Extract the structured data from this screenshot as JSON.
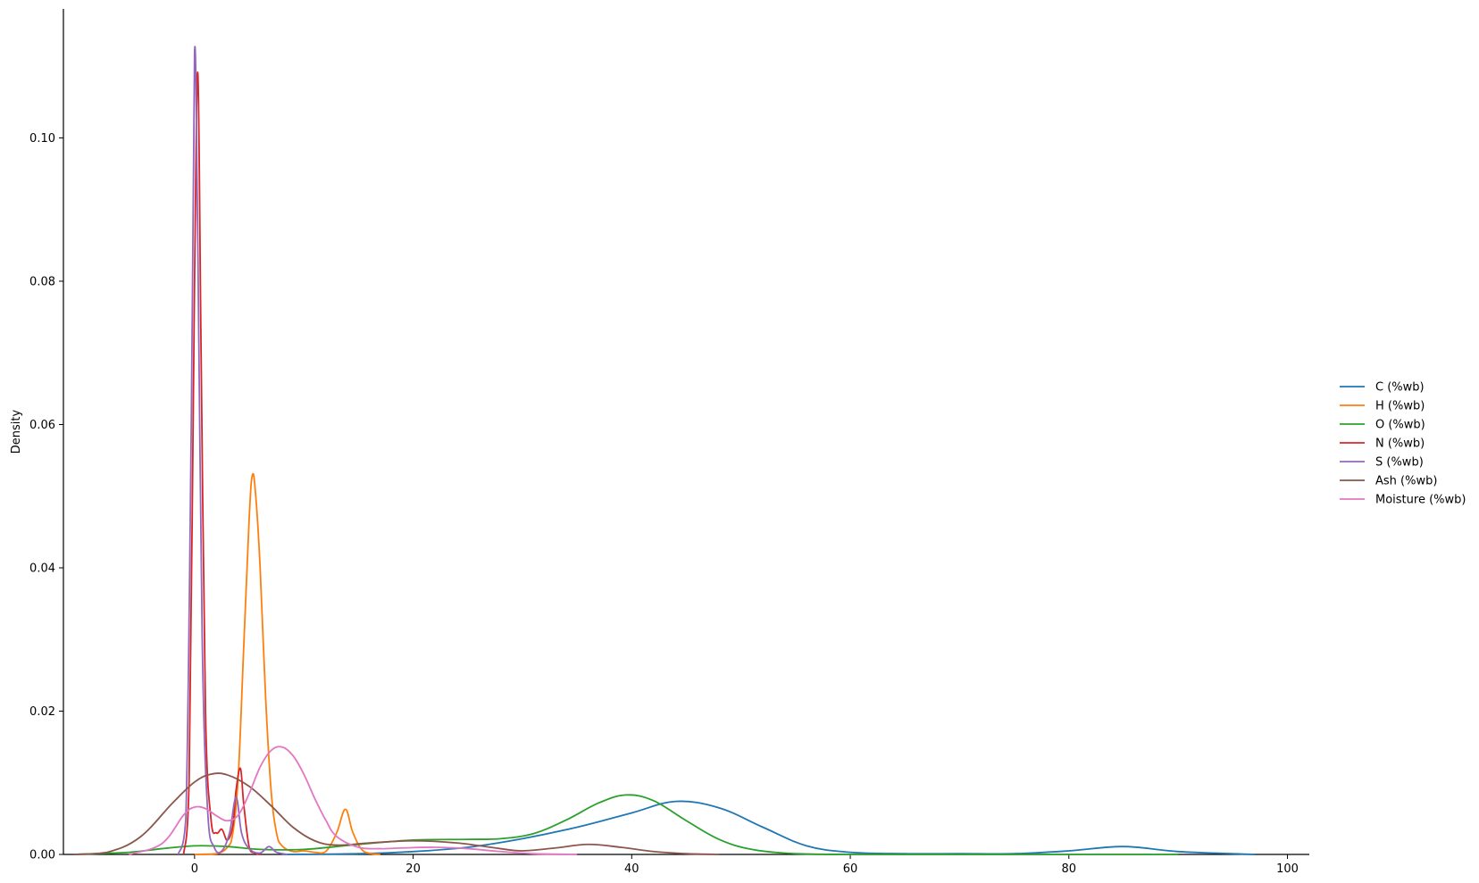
{
  "chart_data": {
    "type": "line",
    "title": "",
    "xlabel": "",
    "ylabel": "Density",
    "xlim": [
      -12,
      102
    ],
    "ylim": [
      0,
      0.118
    ],
    "x_ticks": [
      0,
      20,
      40,
      60,
      80,
      100
    ],
    "y_ticks": [
      0.0,
      0.02,
      0.04,
      0.06,
      0.08,
      0.1
    ],
    "y_tick_labels": [
      "0.00",
      "0.02",
      "0.04",
      "0.06",
      "0.08",
      "0.10"
    ],
    "grid": false,
    "legend": "right",
    "series": [
      {
        "name": "C (%wb)",
        "color": "#1f77b4",
        "x": [
          8,
          15,
          20,
          25,
          30,
          35,
          40,
          44,
          48,
          52,
          56,
          60,
          65,
          70,
          75,
          80,
          85,
          90,
          97
        ],
        "y": [
          0,
          0.0001,
          0.0004,
          0.001,
          0.0022,
          0.0038,
          0.0058,
          0.0074,
          0.0065,
          0.0038,
          0.0012,
          0.0003,
          0.0001,
          0.0001,
          0.0001,
          0.0005,
          0.0011,
          0.0004,
          0
        ]
      },
      {
        "name": "H (%wb)",
        "color": "#ff7f0e",
        "x": [
          0,
          2,
          3,
          3.5,
          4,
          4.5,
          5,
          5.3,
          5.6,
          6,
          6.5,
          7,
          7.5,
          8,
          9,
          10,
          11,
          12,
          13,
          13.8,
          14.5,
          15.5,
          17
        ],
        "y": [
          0,
          0.0001,
          0.001,
          0.003,
          0.011,
          0.029,
          0.047,
          0.053,
          0.05,
          0.04,
          0.022,
          0.009,
          0.003,
          0.0012,
          0.0004,
          0.0005,
          0.0003,
          0.0004,
          0.003,
          0.0063,
          0.003,
          0.0004,
          0
        ]
      },
      {
        "name": "O (%wb)",
        "color": "#2ca02c",
        "x": [
          -11,
          -6,
          -3,
          0,
          3,
          6,
          10,
          15,
          20,
          25,
          28,
          31,
          34,
          37,
          39.5,
          42,
          45,
          48,
          51,
          55,
          60,
          65,
          70,
          80,
          90
        ],
        "y": [
          0,
          0.0003,
          0.0008,
          0.0012,
          0.0011,
          0.0007,
          0.0007,
          0.0014,
          0.002,
          0.0021,
          0.0022,
          0.0029,
          0.0048,
          0.0072,
          0.0083,
          0.0075,
          0.0047,
          0.0021,
          0.0007,
          0.0001,
          0,
          0,
          0,
          0,
          0
        ]
      },
      {
        "name": "N (%wb)",
        "color": "#d62728",
        "x": [
          -1,
          -0.5,
          0,
          0.3,
          0.6,
          1,
          1.5,
          2,
          2.5,
          3,
          3.5,
          3.8,
          4.2,
          4.5,
          5,
          5.5,
          6
        ],
        "y": [
          0,
          0.01,
          0.08,
          0.109,
          0.07,
          0.02,
          0.005,
          0.003,
          0.0035,
          0.002,
          0.004,
          0.009,
          0.012,
          0.007,
          0.001,
          0.0002,
          0
        ]
      },
      {
        "name": "S (%wb)",
        "color": "#9467bd",
        "x": [
          -1.5,
          -0.8,
          -0.3,
          0,
          0.3,
          0.7,
          1.2,
          1.8,
          2.5,
          3.2,
          3.8,
          4.3,
          5,
          6,
          6.8,
          7.5,
          8.5
        ],
        "y": [
          0,
          0.005,
          0.06,
          0.112,
          0.085,
          0.03,
          0.006,
          0.001,
          0.0005,
          0.003,
          0.008,
          0.003,
          0.0008,
          0.0002,
          0.0011,
          0.0003,
          0
        ]
      },
      {
        "name": "Ash (%wb)",
        "color": "#8c564b",
        "x": [
          -11,
          -8,
          -5,
          -2,
          0,
          1.5,
          3,
          5,
          7,
          9,
          11,
          13,
          16,
          20,
          24,
          28,
          30,
          33,
          36,
          39,
          42,
          45,
          48
        ],
        "y": [
          0,
          0.0003,
          0.0024,
          0.0072,
          0.0101,
          0.0112,
          0.0111,
          0.0095,
          0.0068,
          0.0038,
          0.0019,
          0.0013,
          0.0016,
          0.0019,
          0.0016,
          0.0008,
          0.0005,
          0.0009,
          0.0014,
          0.001,
          0.0004,
          0.0001,
          0
        ]
      },
      {
        "name": "Moisture (%wb)",
        "color": "#e377c2",
        "x": [
          -6,
          -3,
          -1,
          0,
          1,
          2,
          3,
          4,
          5,
          6,
          7,
          8,
          9,
          10,
          11,
          12,
          13,
          15,
          17,
          19,
          22,
          25,
          28,
          31,
          35
        ],
        "y": [
          0,
          0.0015,
          0.0055,
          0.0066,
          0.0064,
          0.0054,
          0.0047,
          0.0055,
          0.0085,
          0.0122,
          0.0145,
          0.015,
          0.0138,
          0.0112,
          0.0078,
          0.0048,
          0.0025,
          0.001,
          0.0008,
          0.0009,
          0.001,
          0.0008,
          0.0004,
          0.0001,
          0
        ]
      }
    ]
  }
}
